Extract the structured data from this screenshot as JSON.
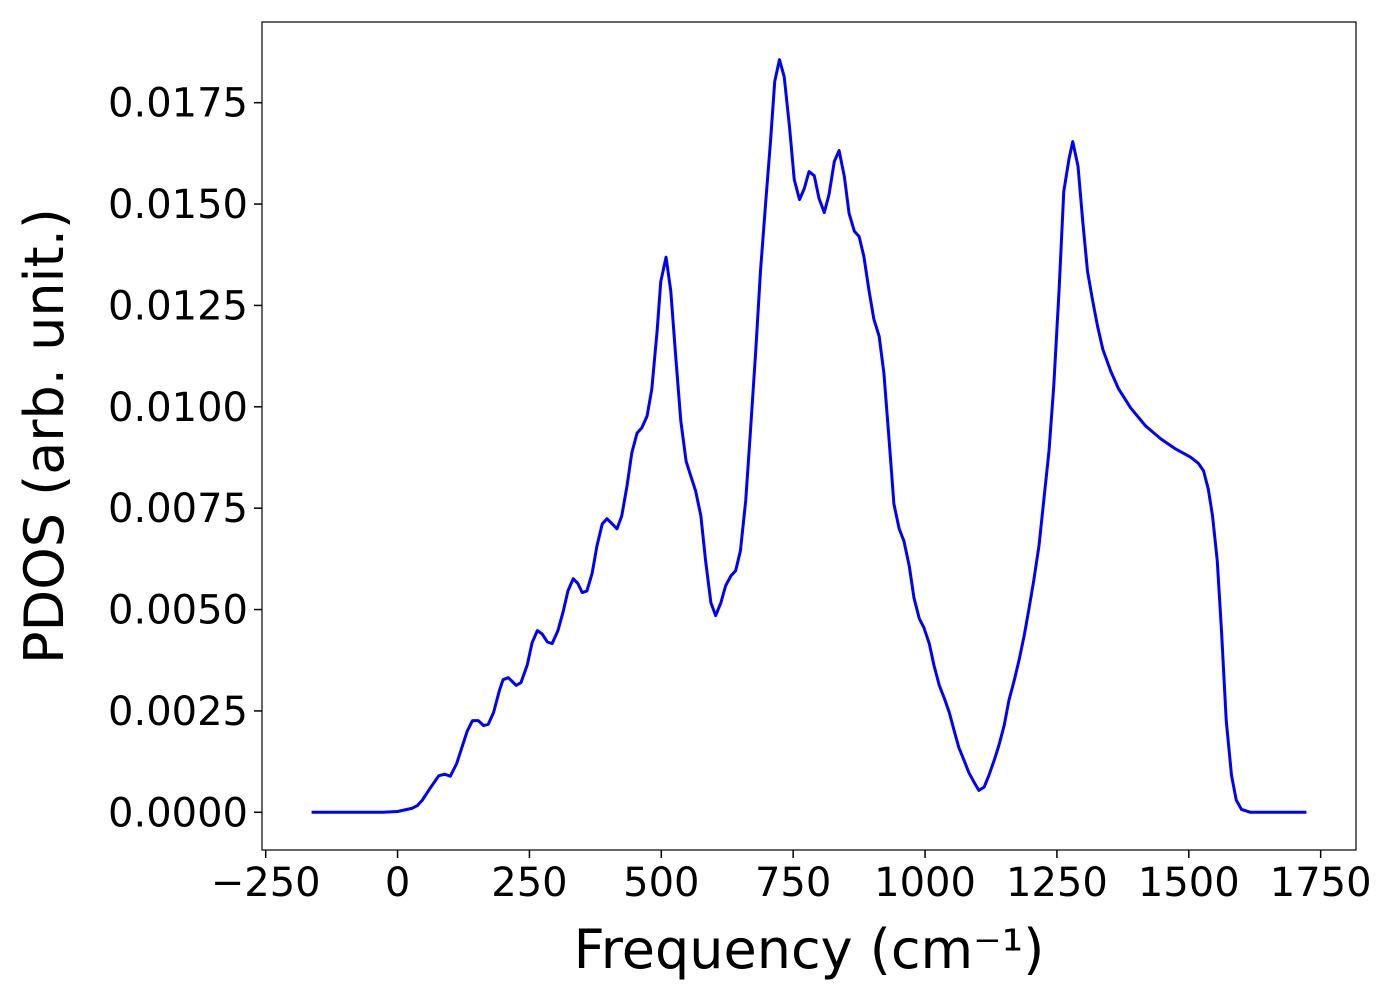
{
  "chart_data": {
    "type": "line",
    "xlabel": "Frequency (cm⁻¹)",
    "ylabel": "PDOS (arb. unit.)",
    "xlim": [
      -257,
      1817
    ],
    "ylim": [
      -0.00093,
      0.01949
    ],
    "xticks": [
      {
        "value": -250,
        "label": "−250"
      },
      0,
      250,
      500,
      750,
      1000,
      1250,
      1500,
      1750
    ],
    "yticks": [
      {
        "value": 0,
        "label": "0.0000"
      },
      {
        "value": 0.0025,
        "label": "0.0025"
      },
      {
        "value": 0.005,
        "label": "0.0050"
      },
      {
        "value": 0.0075,
        "label": "0.0075"
      },
      {
        "value": 0.01,
        "label": "0.0100"
      },
      {
        "value": 0.0125,
        "label": "0.0125"
      },
      {
        "value": 0.015,
        "label": "0.0150"
      },
      {
        "value": 0.0175,
        "label": "0.0175"
      }
    ],
    "grid": false,
    "series": [
      {
        "name": "PDOS",
        "color": "#0000ff",
        "x": [
          -163,
          -28,
          0,
          28,
          38,
          47,
          62,
          78,
          89,
          100,
          112,
          132,
          142,
          153,
          163,
          172,
          182,
          193,
          200,
          210,
          225,
          234,
          246,
          255,
          265,
          274,
          284,
          293,
          304,
          314,
          323,
          333,
          342,
          350,
          359,
          369,
          378,
          388,
          397,
          407,
          416,
          425,
          435,
          444,
          454,
          463,
          473,
          482,
          492,
          499,
          509,
          518,
          528,
          537,
          547,
          556,
          565,
          575,
          584,
          594,
          603,
          613,
          622,
          632,
          641,
          650,
          660,
          669,
          679,
          688,
          698,
          707,
          715,
          724,
          733,
          743,
          752,
          762,
          771,
          780,
          790,
          799,
          809,
          818,
          828,
          837,
          847,
          856,
          866,
          875,
          884,
          894,
          903,
          913,
          922,
          932,
          941,
          951,
          960,
          970,
          979,
          989,
          998,
          1008,
          1017,
          1027,
          1036,
          1046,
          1055,
          1064,
          1074,
          1083,
          1093,
          1102,
          1112,
          1121,
          1131,
          1140,
          1150,
          1159,
          1169,
          1178,
          1188,
          1197,
          1206,
          1216,
          1225,
          1235,
          1244,
          1254,
          1263,
          1273,
          1280,
          1290,
          1299,
          1308,
          1318,
          1327,
          1337,
          1352,
          1367,
          1390,
          1418,
          1447,
          1475,
          1503,
          1518,
          1528,
          1537,
          1545,
          1554,
          1562,
          1571,
          1581,
          1590,
          1600,
          1617,
          1723
        ],
        "values": [
          0,
          0,
          2e-05,
          0.0001,
          0.00017,
          0.0003,
          0.0006,
          0.0009,
          0.00094,
          0.00089,
          0.0012,
          0.002,
          0.00226,
          0.00226,
          0.00214,
          0.00217,
          0.00246,
          0.003,
          0.00327,
          0.00332,
          0.00313,
          0.0032,
          0.00364,
          0.00418,
          0.00448,
          0.0044,
          0.0042,
          0.00416,
          0.00448,
          0.00495,
          0.00546,
          0.00576,
          0.00564,
          0.00542,
          0.00546,
          0.0059,
          0.00657,
          0.00711,
          0.00724,
          0.00711,
          0.00699,
          0.00731,
          0.00805,
          0.00886,
          0.00935,
          0.00948,
          0.00977,
          0.01044,
          0.01186,
          0.01309,
          0.01369,
          0.01285,
          0.01113,
          0.00965,
          0.00866,
          0.00829,
          0.00793,
          0.00731,
          0.0062,
          0.00517,
          0.00485,
          0.00517,
          0.00559,
          0.00583,
          0.00596,
          0.00645,
          0.00768,
          0.0094,
          0.01137,
          0.01334,
          0.01506,
          0.01654,
          0.01802,
          0.01856,
          0.01814,
          0.01691,
          0.01561,
          0.01511,
          0.01538,
          0.0158,
          0.0157,
          0.01514,
          0.01479,
          0.01524,
          0.01605,
          0.01632,
          0.01568,
          0.01477,
          0.01433,
          0.0142,
          0.01371,
          0.01285,
          0.01216,
          0.01174,
          0.01083,
          0.00916,
          0.0076,
          0.00699,
          0.00669,
          0.00608,
          0.00529,
          0.00478,
          0.00455,
          0.00416,
          0.00362,
          0.00313,
          0.00283,
          0.00246,
          0.00202,
          0.0016,
          0.00128,
          0.00098,
          0.00074,
          0.00054,
          0.00062,
          0.00091,
          0.00128,
          0.00165,
          0.00214,
          0.00276,
          0.00325,
          0.00374,
          0.00436,
          0.00502,
          0.00571,
          0.00657,
          0.00768,
          0.00891,
          0.01051,
          0.01285,
          0.01531,
          0.01612,
          0.01654,
          0.01593,
          0.01457,
          0.01334,
          0.0126,
          0.01199,
          0.01142,
          0.01088,
          0.01044,
          0.00997,
          0.00953,
          0.00921,
          0.00896,
          0.00876,
          0.00861,
          0.00842,
          0.00797,
          0.00731,
          0.0062,
          0.00448,
          0.00226,
          0.00091,
          0.0003,
          7e-05,
          0,
          0
        ]
      }
    ]
  }
}
